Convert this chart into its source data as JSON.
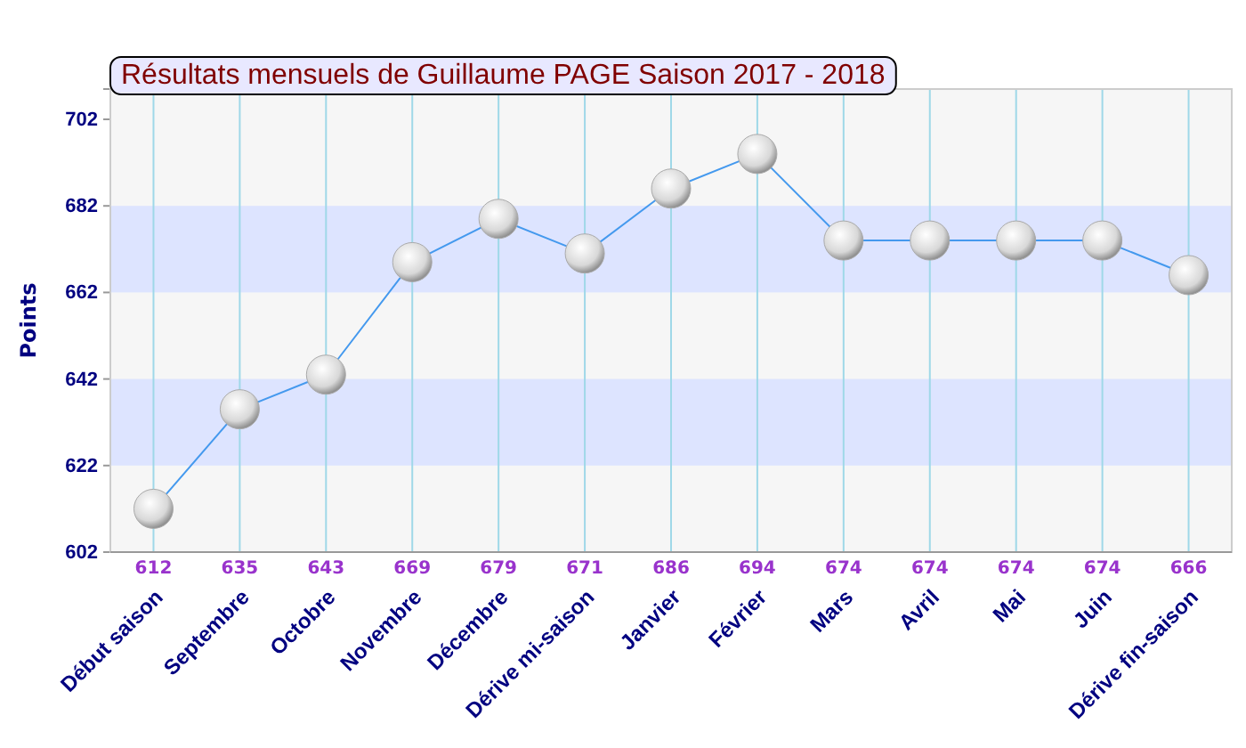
{
  "chart_data": {
    "type": "line",
    "title": "Résultats mensuels de Guillaume PAGE Saison 2017 - 2018",
    "ylabel": "Points",
    "categories": [
      "Début saison",
      "Septembre",
      "Octobre",
      "Novembre",
      "Décembre",
      "Dérive mi-saison",
      "Janvier",
      "Février",
      "Mars",
      "Avril",
      "Mai",
      "Juin",
      "Dérive fin-saison"
    ],
    "series": [
      {
        "color": "#4499ee",
        "values": [
          612,
          635,
          643,
          669,
          679,
          671,
          686,
          694,
          674,
          674,
          674,
          674,
          666
        ]
      }
    ],
    "ylim": [
      602,
      709
    ],
    "yticks": [
      602,
      622,
      642,
      662,
      682,
      702
    ],
    "bands": [
      {
        "axis": "y",
        "from": 622,
        "to": 642,
        "color": "#dde4ff"
      },
      {
        "axis": "y",
        "from": 662,
        "to": 682,
        "color": "#dde4ff"
      }
    ],
    "grid": "x",
    "marker": "circle",
    "data_labels": true
  }
}
